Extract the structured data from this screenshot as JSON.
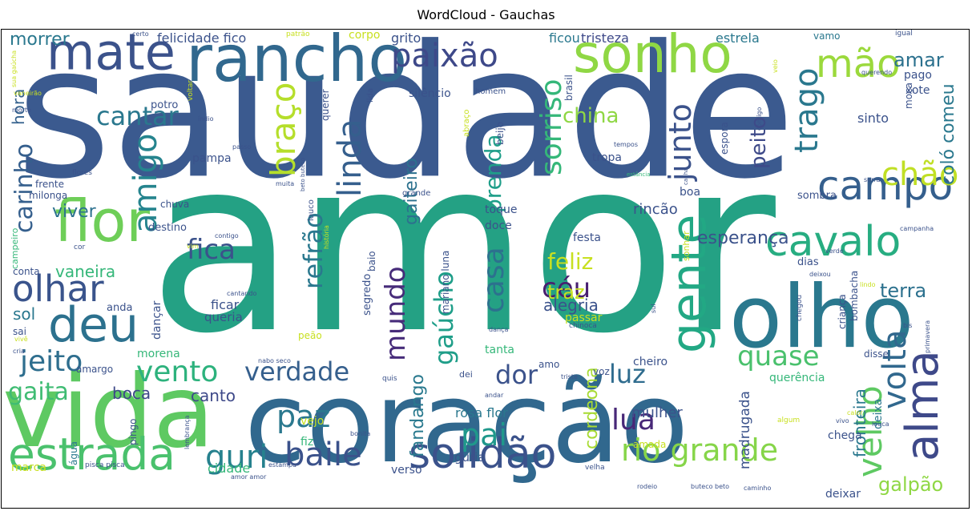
{
  "title": "WordCloud - Gauchas",
  "words": [
    {
      "text": "saudade",
      "color": "#3b5a8f"
    },
    {
      "text": "amor",
      "color": "#24a184"
    },
    {
      "text": "coração",
      "color": "#31688e"
    },
    {
      "text": "vida",
      "color": "#5ec962"
    },
    {
      "text": "rancho",
      "color": "#31688e"
    },
    {
      "text": "sonho",
      "color": "#8fd744"
    },
    {
      "text": "mate",
      "color": "#3b528b"
    },
    {
      "text": "olho",
      "color": "#2a788e"
    },
    {
      "text": "estrada",
      "color": "#4ac16d"
    },
    {
      "text": "solidão",
      "color": "#3b528b"
    },
    {
      "text": "flor",
      "color": "#6ece58"
    },
    {
      "text": "gente",
      "color": "#22a884"
    },
    {
      "text": "cavalo",
      "color": "#27ad81"
    },
    {
      "text": "campo",
      "color": "#355f8d"
    },
    {
      "text": "deu",
      "color": "#2c718e"
    },
    {
      "text": "alma",
      "color": "#3e4989"
    },
    {
      "text": "olhar",
      "color": "#3a548c"
    },
    {
      "text": "baile",
      "color": "#3b528b"
    },
    {
      "text": "guri",
      "color": "#26818e"
    },
    {
      "text": "rio grande",
      "color": "#86d549"
    },
    {
      "text": "mão",
      "color": "#9bd93c"
    },
    {
      "text": "paixão",
      "color": "#3e4989"
    },
    {
      "text": "linda",
      "color": "#355f8d"
    },
    {
      "text": "amigo",
      "color": "#25848e"
    },
    {
      "text": "braço",
      "color": "#b5de2b"
    },
    {
      "text": "cantar",
      "color": "#2a788e"
    },
    {
      "text": "sorriso",
      "color": "#35b779"
    },
    {
      "text": "junto",
      "color": "#3b528b"
    },
    {
      "text": "trago",
      "color": "#2a788e"
    },
    {
      "text": "chão",
      "color": "#c0df25"
    },
    {
      "text": "velho",
      "color": "#5ec962"
    },
    {
      "text": "volta",
      "color": "#31688e"
    },
    {
      "text": "pai",
      "color": "#1f988b"
    },
    {
      "text": "paz",
      "color": "#2a788e"
    },
    {
      "text": "lua",
      "color": "#482878"
    },
    {
      "text": "céu",
      "color": "#481f70"
    },
    {
      "text": "casa",
      "color": "#2c718e"
    },
    {
      "text": "mundo",
      "color": "#472c7a"
    },
    {
      "text": "gaúcho",
      "color": "#1f9e89"
    },
    {
      "text": "refrão",
      "color": "#2a788e"
    },
    {
      "text": "luz",
      "color": "#2f6c8e"
    },
    {
      "text": "dor",
      "color": "#3b528b"
    },
    {
      "text": "verdade",
      "color": "#355f8d"
    },
    {
      "text": "vento",
      "color": "#2db27d"
    },
    {
      "text": "jeito",
      "color": "#2e6e8e"
    },
    {
      "text": "gaita",
      "color": "#3fbc73"
    },
    {
      "text": "boca",
      "color": "#3e4989"
    },
    {
      "text": "fica",
      "color": "#3b528b"
    },
    {
      "text": "carinho",
      "color": "#355f8d"
    },
    {
      "text": "viver",
      "color": "#2c718e"
    },
    {
      "text": "morrer",
      "color": "#2a788e"
    },
    {
      "text": "hora",
      "color": "#34618d"
    },
    {
      "text": "quase",
      "color": "#4ac16d"
    },
    {
      "text": "esperança",
      "color": "#3b528b"
    },
    {
      "text": "feliz",
      "color": "#c8e020"
    },
    {
      "text": "china",
      "color": "#8fd744"
    },
    {
      "text": "prenda",
      "color": "#1f9e89"
    },
    {
      "text": "gaiteiro",
      "color": "#2c718e"
    },
    {
      "text": "peito",
      "color": "#3e4a89"
    },
    {
      "text": "coló comeu",
      "color": "#2a788e"
    },
    {
      "text": "amar",
      "color": "#2c718e"
    },
    {
      "text": "fandango",
      "color": "#29798e"
    },
    {
      "text": "cordeona",
      "color": "#a8db34"
    },
    {
      "text": "canto",
      "color": "#3e4989"
    },
    {
      "text": "terra",
      "color": "#2c718e"
    },
    {
      "text": "vaneira",
      "color": "#35b779"
    },
    {
      "text": "alegria",
      "color": "#3b528b"
    },
    {
      "text": "traz",
      "color": "#c8e020"
    },
    {
      "text": "fronteira",
      "color": "#2a788e"
    },
    {
      "text": "madrugada",
      "color": "#3b528b"
    },
    {
      "text": "galpão",
      "color": "#8fd744"
    },
    {
      "text": "mulher",
      "color": "#3b528b"
    },
    {
      "text": "sol",
      "color": "#2a788e"
    },
    {
      "text": "felicidade fico",
      "color": "#3b528b"
    },
    {
      "text": "tristeza",
      "color": "#3e4989"
    },
    {
      "text": "ficou",
      "color": "#2a788e"
    },
    {
      "text": "estrela",
      "color": "#2a788e"
    },
    {
      "text": "grito",
      "color": "#3b528b"
    },
    {
      "text": "corpo",
      "color": "#c8e020"
    },
    {
      "text": "rosa flor",
      "color": "#2a788e"
    },
    {
      "text": "rincão",
      "color": "#3b528b"
    },
    {
      "text": "festa",
      "color": "#3b528b"
    },
    {
      "text": "doce",
      "color": "#3b528b"
    },
    {
      "text": "toque",
      "color": "#3b528b"
    },
    {
      "text": "ficar",
      "color": "#3b528b"
    },
    {
      "text": "queria",
      "color": "#3b528b"
    },
    {
      "text": "dançar",
      "color": "#3b528b"
    },
    {
      "text": "tanta",
      "color": "#35b779"
    },
    {
      "text": "passar",
      "color": "#c8e020"
    },
    {
      "text": "cheiro",
      "color": "#3b528b"
    },
    {
      "text": "quis",
      "color": "#3b528b"
    },
    {
      "text": "voz",
      "color": "#3b528b"
    },
    {
      "text": "amo",
      "color": "#3b528b"
    },
    {
      "text": "dei",
      "color": "#3b528b"
    },
    {
      "text": "querência",
      "color": "#35b779"
    },
    {
      "text": "chega",
      "color": "#3b528b"
    },
    {
      "text": "deixa",
      "color": "#2a788e"
    },
    {
      "text": "deixar",
      "color": "#3b528b"
    },
    {
      "text": "guria",
      "color": "#3b528b"
    },
    {
      "text": "verso",
      "color": "#3b528b"
    },
    {
      "text": "cidade",
      "color": "#35b779"
    },
    {
      "text": "marca",
      "color": "#c8e020"
    },
    {
      "text": "água",
      "color": "#2a788e"
    },
    {
      "text": "pingo",
      "color": "#3b528b"
    },
    {
      "text": "fiz",
      "color": "#35b779"
    },
    {
      "text": "vejo",
      "color": "#c8e020"
    },
    {
      "text": "amada",
      "color": "#c8e020"
    },
    {
      "text": "boa",
      "color": "#3b528b"
    },
    {
      "text": "sombra",
      "color": "#3b528b"
    },
    {
      "text": "sinto",
      "color": "#3b528b"
    },
    {
      "text": "xote",
      "color": "#3b528b"
    },
    {
      "text": "pago",
      "color": "#3b528b"
    },
    {
      "text": "moça",
      "color": "#3b528b"
    },
    {
      "text": "vamo",
      "color": "#2a788e"
    },
    {
      "text": "igual",
      "color": "#3b528b"
    },
    {
      "text": "homem",
      "color": "#3b528b"
    },
    {
      "text": "silêncio",
      "color": "#3b528b"
    },
    {
      "text": "brasil",
      "color": "#3b528b"
    },
    {
      "text": "potro",
      "color": "#3b528b"
    },
    {
      "text": "pampa",
      "color": "#3b528b"
    },
    {
      "text": "tropa",
      "color": "#3b528b"
    },
    {
      "text": "querer",
      "color": "#3b528b"
    },
    {
      "text": "beijo",
      "color": "#3b528b"
    },
    {
      "text": "abraço",
      "color": "#c8e020"
    },
    {
      "text": "lida",
      "color": "#3b528b"
    },
    {
      "text": "grande",
      "color": "#3b528b"
    },
    {
      "text": "louco",
      "color": "#3b528b"
    },
    {
      "text": "destino",
      "color": "#3b528b"
    },
    {
      "text": "campeiro",
      "color": "#35b779"
    },
    {
      "text": "conta",
      "color": "#3b528b"
    },
    {
      "text": "anda",
      "color": "#3b528b"
    },
    {
      "text": "sai",
      "color": "#3b528b"
    },
    {
      "text": "chuva",
      "color": "#3b528b"
    },
    {
      "text": "milonga",
      "color": "#3b528b"
    },
    {
      "text": "frente",
      "color": "#3b528b"
    },
    {
      "text": "flores",
      "color": "#3b528b"
    },
    {
      "text": "morena",
      "color": "#35b779"
    },
    {
      "text": "amargo",
      "color": "#3b528b"
    },
    {
      "text": "peão",
      "color": "#c8e020"
    },
    {
      "text": "segredo",
      "color": "#3b528b"
    },
    {
      "text": "baio",
      "color": "#3b528b"
    },
    {
      "text": "mariano luna",
      "color": "#3b528b"
    },
    {
      "text": "espora",
      "color": "#3b528b"
    },
    {
      "text": "criança",
      "color": "#3b528b"
    },
    {
      "text": "bombacha",
      "color": "#3b528b"
    },
    {
      "text": "sonhar",
      "color": "#c8e020"
    },
    {
      "text": "dias",
      "color": "#3b528b"
    },
    {
      "text": "chegou",
      "color": "#3b528b"
    },
    {
      "text": "chinoca",
      "color": "#3b528b"
    },
    {
      "text": "disse",
      "color": "#3b528b"
    },
    {
      "text": "cor",
      "color": "#3b528b"
    },
    {
      "text": "morte",
      "color": "#3b528b"
    },
    {
      "text": "índio",
      "color": "#3b528b"
    },
    {
      "text": "passo",
      "color": "#3b528b"
    },
    {
      "text": "tempos",
      "color": "#3b528b"
    },
    {
      "text": "comigo",
      "color": "#3b528b"
    },
    {
      "text": "querendo",
      "color": "#3b528b"
    },
    {
      "text": "serra",
      "color": "#3b528b"
    },
    {
      "text": "campanha",
      "color": "#3b528b"
    },
    {
      "text": "verde",
      "color": "#3b528b"
    },
    {
      "text": "deixou",
      "color": "#3b528b"
    },
    {
      "text": "lindo",
      "color": "#c8e020"
    },
    {
      "text": "primavera",
      "color": "#3b528b"
    },
    {
      "text": "bis",
      "color": "#3b528b"
    },
    {
      "text": "sul",
      "color": "#3b528b"
    },
    {
      "text": "dança",
      "color": "#3b528b"
    },
    {
      "text": "triste",
      "color": "#3b528b"
    },
    {
      "text": "andar",
      "color": "#3b528b"
    },
    {
      "text": "algum",
      "color": "#c8e020"
    },
    {
      "text": "calor",
      "color": "#c8e020"
    },
    {
      "text": "vivo",
      "color": "#3b528b"
    },
    {
      "text": "louca",
      "color": "#3b528b"
    },
    {
      "text": "bonita",
      "color": "#3b528b"
    },
    {
      "text": "lembrança",
      "color": "#3b528b"
    },
    {
      "text": "pisca pisca",
      "color": "#3b528b"
    },
    {
      "text": "estampa",
      "color": "#3b528b"
    },
    {
      "text": "amor amor",
      "color": "#3b528b"
    },
    {
      "text": "velha",
      "color": "#3b528b"
    },
    {
      "text": "rodeio",
      "color": "#3b528b"
    },
    {
      "text": "buteco beto",
      "color": "#3b528b"
    },
    {
      "text": "caminho",
      "color": "#3b528b"
    },
    {
      "text": "nabo seco",
      "color": "#3b528b"
    },
    {
      "text": "cantando",
      "color": "#3b528b"
    },
    {
      "text": "contigo",
      "color": "#3b528b"
    },
    {
      "text": "vim",
      "color": "#c8e020"
    },
    {
      "text": "história",
      "color": "#c8e020"
    },
    {
      "text": "muita",
      "color": "#3b528b"
    },
    {
      "text": "beto buteco",
      "color": "#3b528b"
    },
    {
      "text": "estância",
      "color": "#35b779"
    },
    {
      "text": "canha",
      "color": "#3b528b"
    },
    {
      "text": "vaneirão",
      "color": "#c8e020"
    },
    {
      "text": "voltar",
      "color": "#c8e020"
    },
    {
      "text": "patrão",
      "color": "#c8e020"
    },
    {
      "text": "certo",
      "color": "#3b528b"
    },
    {
      "text": "veio",
      "color": "#c8e020"
    },
    {
      "text": "sua gaúcha",
      "color": "#c8e020"
    },
    {
      "text": "cria",
      "color": "#3b528b"
    },
    {
      "text": "vivê",
      "color": "#c8e020"
    }
  ]
}
